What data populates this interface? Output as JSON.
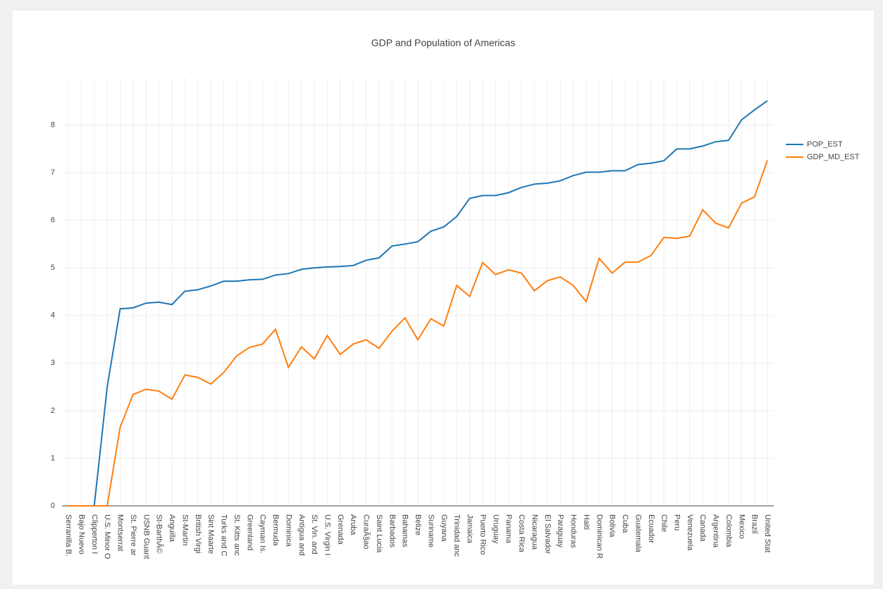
{
  "chart_data": {
    "type": "line",
    "title": "GDP and Population of Americas",
    "categories": [
      "Serranilla B.",
      "Bajo Nuevo",
      "Clipperton I",
      "U.S. Minor O",
      "Montserrat",
      "St. Pierre ar",
      "USNB Guant",
      "St-BarthÃ©",
      "Anguilla",
      "St-Martin",
      "British Virgi",
      "Sint Maarte",
      "Turks and C",
      "St. Kitts anc",
      "Greenland",
      "Cayman Is.",
      "Bermuda",
      "Dominica",
      "Antigua and",
      "St. Vin. and",
      "U.S. Virgin I",
      "Grenada",
      "Aruba",
      "CuraÃ§ao",
      "Saint Lucia",
      "Barbados",
      "Bahamas",
      "Belize",
      "Suriname",
      "Guyana",
      "Trinidad anc",
      "Jamaica",
      "Puerto Rico",
      "Uruguay",
      "Panama",
      "Costa Rica",
      "Nicaragua",
      "El Salvador",
      "Paraguay",
      "Honduras",
      "Haiti",
      "Dominican R",
      "Bolivia",
      "Cuba",
      "Guatemala",
      "Ecuador",
      "Chile",
      "Peru",
      "Venezuela",
      "Canada",
      "Argentina",
      "Colombia",
      "Mexico",
      "Brazil",
      "United Stat"
    ],
    "series": [
      {
        "name": "POP_EST",
        "color": "#1f77b4",
        "values": [
          0,
          0,
          0,
          2.5,
          4.14,
          4.16,
          4.26,
          4.28,
          4.23,
          4.51,
          4.54,
          4.62,
          4.72,
          4.72,
          4.75,
          4.76,
          4.85,
          4.88,
          4.97,
          5.0,
          5.02,
          5.03,
          5.05,
          5.16,
          5.21,
          5.46,
          5.5,
          5.55,
          5.77,
          5.86,
          6.08,
          6.46,
          6.52,
          6.52,
          6.58,
          6.69,
          6.76,
          6.78,
          6.83,
          6.94,
          7.01,
          7.01,
          7.04,
          7.04,
          7.17,
          7.2,
          7.25,
          7.5,
          7.5,
          7.56,
          7.65,
          7.68,
          8.11,
          8.32,
          8.51
        ]
      },
      {
        "name": "GDP_MD_EST",
        "color": "#ff7f0e",
        "values": [
          0,
          0,
          0,
          0,
          1.65,
          2.34,
          2.45,
          2.41,
          2.24,
          2.75,
          2.7,
          2.56,
          2.8,
          3.15,
          3.33,
          3.4,
          3.71,
          2.91,
          3.34,
          3.09,
          3.58,
          3.18,
          3.4,
          3.49,
          3.31,
          3.67,
          3.95,
          3.49,
          3.93,
          3.78,
          4.63,
          4.4,
          5.11,
          4.86,
          4.96,
          4.89,
          4.52,
          4.73,
          4.81,
          4.63,
          4.29,
          5.2,
          4.89,
          5.12,
          5.12,
          5.26,
          5.64,
          5.62,
          5.67,
          6.22,
          5.94,
          5.84,
          6.36,
          6.49,
          7.26
        ]
      }
    ],
    "ylim": [
      0,
      9
    ],
    "yticks": [
      0,
      1,
      2,
      3,
      4,
      5,
      6,
      7,
      8
    ],
    "grid": true,
    "legend": "top-right"
  }
}
